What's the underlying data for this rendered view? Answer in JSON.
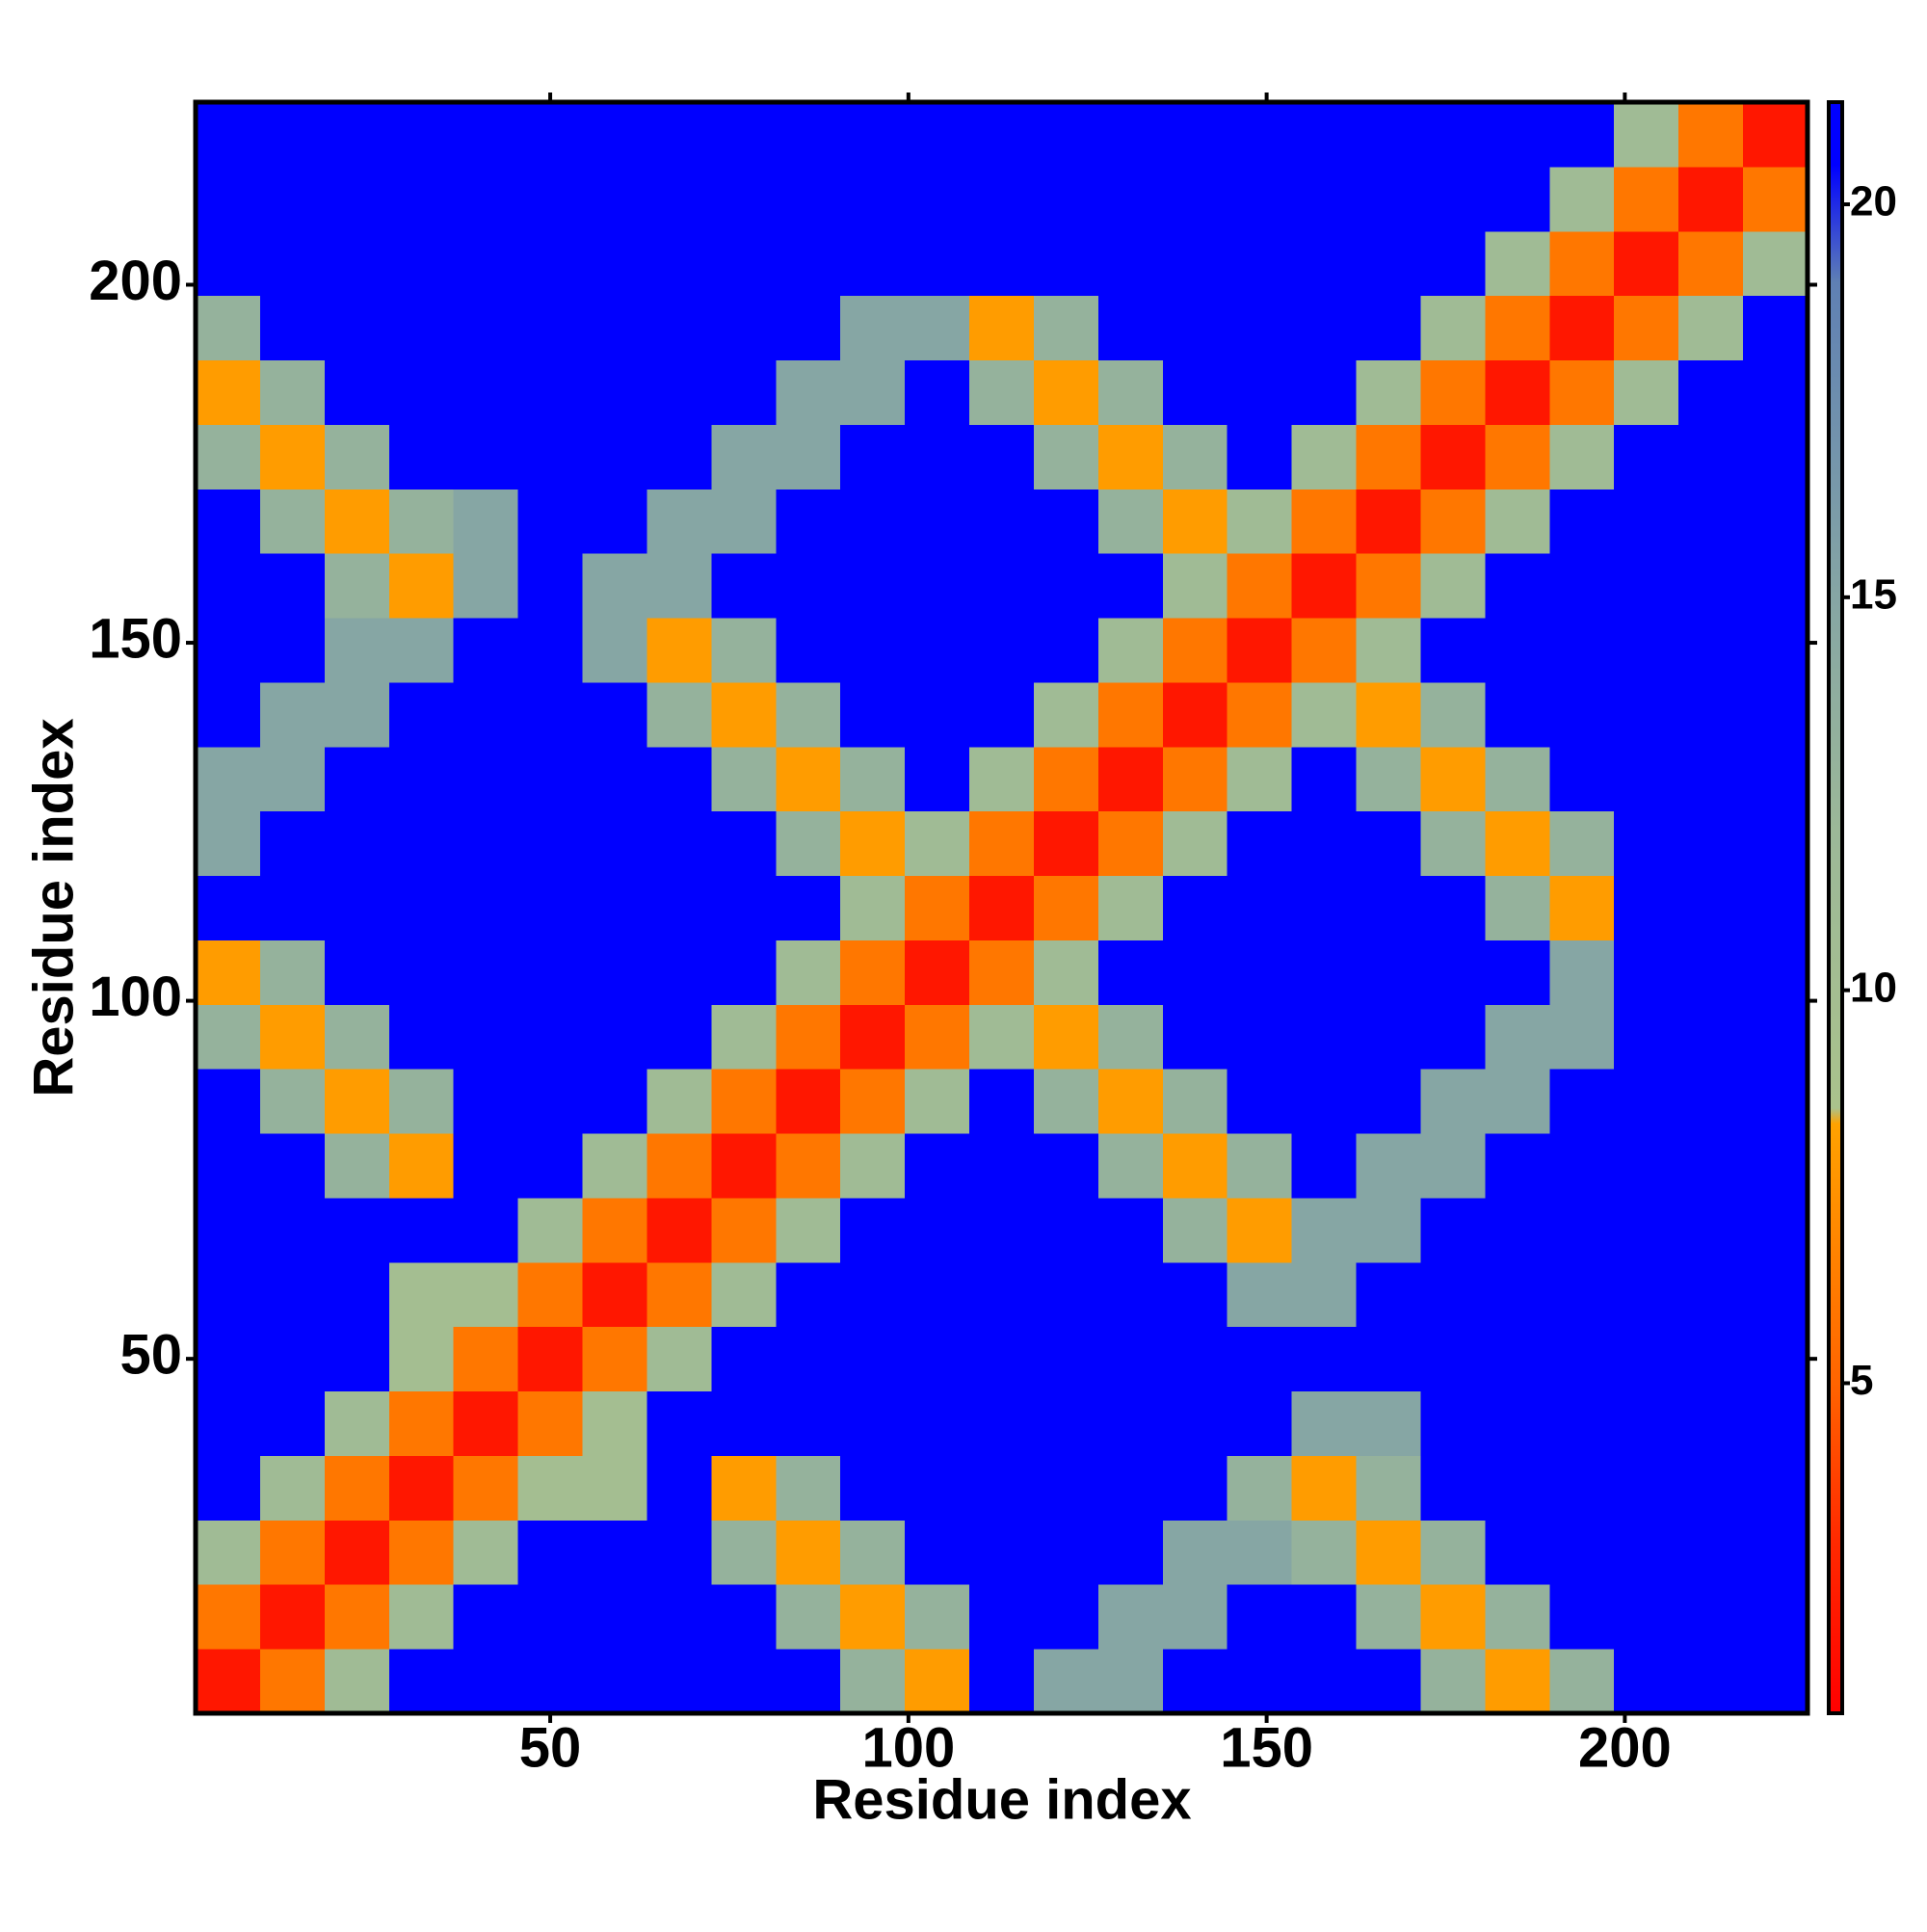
{
  "chart_data": {
    "type": "heatmap",
    "x_label": "Residue index",
    "y_label": "Residue index",
    "x": [
      5,
      14,
      23,
      32,
      41,
      50,
      59,
      68,
      77,
      86,
      95,
      104,
      113,
      122,
      131,
      140,
      149,
      158,
      167,
      176,
      185,
      194,
      203,
      212,
      221
    ],
    "y": [
      5,
      14,
      23,
      32,
      41,
      50,
      59,
      68,
      77,
      86,
      95,
      104,
      113,
      122,
      131,
      140,
      149,
      158,
      167,
      176,
      185,
      194,
      203,
      212,
      221
    ],
    "z": [
      [
        2,
        6,
        11,
        21,
        21,
        21,
        21,
        21,
        21,
        21,
        13,
        8,
        21,
        15,
        15,
        21,
        21,
        21,
        21,
        13,
        8,
        13,
        21,
        21,
        21
      ],
      [
        6,
        2,
        6,
        11,
        21,
        21,
        21,
        21,
        21,
        13,
        8,
        13,
        21,
        21,
        15,
        15,
        21,
        21,
        13,
        8,
        13,
        21,
        21,
        21,
        21
      ],
      [
        11,
        6,
        2,
        6,
        11,
        21,
        21,
        21,
        13,
        8,
        13,
        21,
        21,
        21,
        21,
        15,
        15,
        13,
        8,
        13,
        21,
        21,
        21,
        21,
        21
      ],
      [
        21,
        11,
        6,
        2,
        6,
        10,
        10,
        21,
        8,
        13,
        21,
        21,
        21,
        21,
        21,
        21,
        13,
        8,
        13,
        21,
        21,
        21,
        21,
        21,
        21
      ],
      [
        21,
        21,
        11,
        6,
        2,
        6,
        10,
        21,
        21,
        21,
        21,
        21,
        21,
        21,
        21,
        21,
        21,
        15,
        15,
        21,
        21,
        21,
        21,
        21,
        21
      ],
      [
        21,
        21,
        21,
        10,
        6,
        2,
        6,
        11,
        21,
        21,
        21,
        21,
        21,
        21,
        21,
        21,
        21,
        21,
        21,
        21,
        21,
        21,
        21,
        21,
        21
      ],
      [
        21,
        21,
        21,
        10,
        10,
        6,
        2,
        6,
        11,
        21,
        21,
        21,
        21,
        21,
        21,
        21,
        15,
        15,
        21,
        21,
        21,
        21,
        21,
        21,
        21
      ],
      [
        21,
        21,
        21,
        21,
        21,
        11,
        6,
        2,
        6,
        11,
        21,
        21,
        21,
        21,
        21,
        13,
        8,
        15,
        15,
        21,
        21,
        21,
        21,
        21,
        21
      ],
      [
        21,
        21,
        13,
        8,
        21,
        21,
        11,
        6,
        2,
        6,
        11,
        21,
        21,
        21,
        13,
        8,
        13,
        21,
        15,
        15,
        21,
        21,
        21,
        21,
        21
      ],
      [
        21,
        13,
        8,
        13,
        21,
        21,
        21,
        11,
        6,
        2,
        6,
        11,
        21,
        13,
        8,
        13,
        21,
        21,
        21,
        15,
        15,
        21,
        21,
        21,
        21
      ],
      [
        13,
        8,
        13,
        21,
        21,
        21,
        21,
        21,
        11,
        6,
        2,
        6,
        11,
        8,
        13,
        21,
        21,
        21,
        21,
        21,
        15,
        15,
        21,
        21,
        21
      ],
      [
        8,
        13,
        21,
        21,
        21,
        21,
        21,
        21,
        21,
        11,
        6,
        2,
        6,
        11,
        21,
        21,
        21,
        21,
        21,
        21,
        21,
        15,
        21,
        21,
        21
      ],
      [
        21,
        21,
        21,
        21,
        21,
        21,
        21,
        21,
        21,
        21,
        11,
        6,
        2,
        6,
        11,
        21,
        21,
        21,
        21,
        21,
        13,
        8,
        21,
        21,
        21
      ],
      [
        15,
        21,
        21,
        21,
        21,
        21,
        21,
        21,
        21,
        13,
        8,
        11,
        6,
        2,
        6,
        11,
        21,
        21,
        21,
        13,
        8,
        13,
        21,
        21,
        21
      ],
      [
        15,
        15,
        21,
        21,
        21,
        21,
        21,
        21,
        13,
        8,
        13,
        21,
        11,
        6,
        2,
        6,
        11,
        21,
        13,
        8,
        13,
        21,
        21,
        21,
        21
      ],
      [
        21,
        15,
        15,
        21,
        21,
        21,
        21,
        13,
        8,
        13,
        21,
        21,
        21,
        11,
        6,
        2,
        6,
        11,
        8,
        13,
        21,
        21,
        21,
        21,
        21
      ],
      [
        21,
        21,
        15,
        15,
        21,
        21,
        15,
        8,
        13,
        21,
        21,
        21,
        21,
        21,
        11,
        6,
        2,
        6,
        11,
        21,
        21,
        21,
        21,
        21,
        21
      ],
      [
        21,
        21,
        13,
        8,
        15,
        21,
        15,
        15,
        21,
        21,
        21,
        21,
        21,
        21,
        21,
        11,
        6,
        2,
        6,
        11,
        21,
        21,
        21,
        21,
        21
      ],
      [
        21,
        13,
        8,
        13,
        15,
        21,
        21,
        15,
        15,
        21,
        21,
        21,
        21,
        21,
        13,
        8,
        11,
        6,
        2,
        6,
        11,
        21,
        21,
        21,
        21
      ],
      [
        13,
        8,
        13,
        21,
        21,
        21,
        21,
        21,
        15,
        15,
        21,
        21,
        21,
        13,
        8,
        13,
        21,
        11,
        6,
        2,
        6,
        11,
        21,
        21,
        21
      ],
      [
        8,
        13,
        21,
        21,
        21,
        21,
        21,
        21,
        21,
        15,
        15,
        21,
        13,
        8,
        13,
        21,
        21,
        21,
        11,
        6,
        2,
        6,
        11,
        21,
        21
      ],
      [
        13,
        21,
        21,
        21,
        21,
        21,
        21,
        21,
        21,
        21,
        15,
        15,
        8,
        13,
        21,
        21,
        21,
        21,
        21,
        11,
        6,
        2,
        6,
        11,
        21
      ],
      [
        21,
        21,
        21,
        21,
        21,
        21,
        21,
        21,
        21,
        21,
        21,
        21,
        21,
        21,
        21,
        21,
        21,
        21,
        21,
        21,
        11,
        6,
        2,
        6,
        11
      ],
      [
        21,
        21,
        21,
        21,
        21,
        21,
        21,
        21,
        21,
        21,
        21,
        21,
        21,
        21,
        21,
        21,
        21,
        21,
        21,
        21,
        21,
        11,
        6,
        2,
        6
      ],
      [
        21,
        21,
        21,
        21,
        21,
        21,
        21,
        21,
        21,
        21,
        21,
        21,
        21,
        21,
        21,
        21,
        21,
        21,
        21,
        21,
        21,
        21,
        11,
        6,
        2
      ]
    ],
    "cell_size": 9,
    "xlim": [
      0.5,
      225.5
    ],
    "ylim": [
      0.5,
      225.5
    ],
    "xticks": [
      50,
      100,
      150,
      200
    ],
    "yticks": [
      50,
      100,
      150,
      200
    ],
    "zlim": [
      0.8,
      21.3
    ],
    "colorbar_ticks": [
      5,
      10,
      15,
      20
    ],
    "colorscale": [
      [
        0.8,
        "#ff0000"
      ],
      [
        3,
        "#ff2a00"
      ],
      [
        5,
        "#ff6400"
      ],
      [
        8.3,
        "#ffa200"
      ],
      [
        8.5,
        "#aac28c"
      ],
      [
        12,
        "#9cb898"
      ],
      [
        15,
        "#86a6a4"
      ],
      [
        19,
        "#5f80b4"
      ],
      [
        20.5,
        "#0000ff"
      ],
      [
        21.3,
        "#0000ff"
      ]
    ]
  }
}
